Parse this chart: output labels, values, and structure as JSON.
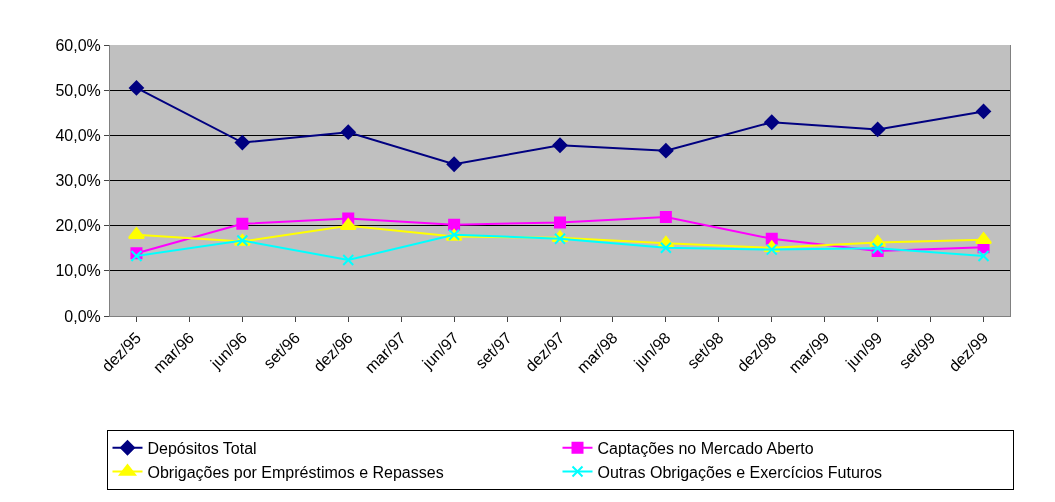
{
  "chart_data": {
    "type": "line",
    "categories": [
      "dez/95",
      "mar/96",
      "jun/96",
      "set/96",
      "dez/96",
      "mar/97",
      "jun/97",
      "set/97",
      "dez/97",
      "mar/98",
      "jun/98",
      "set/98",
      "dez/98",
      "mar/99",
      "jun/99",
      "set/99",
      "dez/99"
    ],
    "series": [
      {
        "name": "Depósitos Total",
        "color": "#000080",
        "marker": "diamond",
        "values": [
          50.5,
          null,
          38.4,
          null,
          40.7,
          null,
          33.6,
          null,
          37.8,
          null,
          36.6,
          null,
          42.9,
          null,
          41.3,
          null,
          45.3
        ]
      },
      {
        "name": "Captações no Mercado Aberto",
        "color": "#ff00ff",
        "marker": "square",
        "values": [
          13.9,
          null,
          20.4,
          null,
          21.6,
          null,
          20.2,
          null,
          20.7,
          null,
          21.9,
          null,
          17.1,
          null,
          14.4,
          null,
          15.2
        ]
      },
      {
        "name": "Obrigações por Empréstimos e Repasses",
        "color": "#ffff00",
        "marker": "triangle",
        "values": [
          18.0,
          null,
          16.5,
          null,
          20.0,
          null,
          17.6,
          null,
          17.3,
          null,
          16.1,
          null,
          15.1,
          null,
          16.3,
          null,
          16.9
        ]
      },
      {
        "name": "Outras Obrigações e Exercícios Futuros",
        "color": "#00ffff",
        "marker": "cross",
        "values": [
          13.3,
          null,
          16.7,
          null,
          12.4,
          null,
          18.0,
          null,
          17.1,
          null,
          15.1,
          null,
          14.7,
          null,
          15.0,
          null,
          13.3
        ]
      }
    ],
    "ylim": [
      0,
      60
    ],
    "yticks": [
      {
        "value": 0,
        "label": "0,0%"
      },
      {
        "value": 10,
        "label": "10,0%"
      },
      {
        "value": 20,
        "label": "20,0%"
      },
      {
        "value": 30,
        "label": "30,0%"
      },
      {
        "value": 40,
        "label": "40,0%"
      },
      {
        "value": 50,
        "label": "50,0%"
      },
      {
        "value": 60,
        "label": "60,0%"
      }
    ],
    "grid": "y",
    "legend": "bottom",
    "line_style": "solid"
  }
}
